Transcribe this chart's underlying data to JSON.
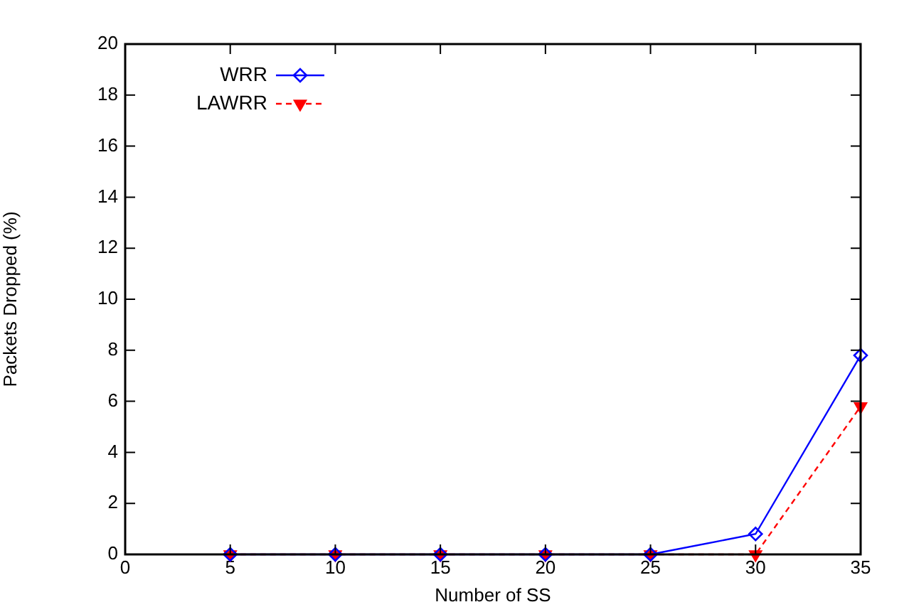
{
  "chart_data": {
    "type": "line",
    "xlabel": "Number of SS",
    "ylabel": "Packets Dropped (%)",
    "x": [
      5,
      10,
      15,
      20,
      25,
      30,
      35
    ],
    "series": [
      {
        "name": "WRR",
        "color": "#0000ff",
        "values": [
          0,
          0,
          0,
          0,
          0,
          0.8,
          7.8
        ],
        "marker": "diamond",
        "line_style": "solid"
      },
      {
        "name": "LAWRR",
        "color": "#ff0000",
        "values": [
          0,
          0,
          0,
          0,
          0,
          0,
          5.8
        ],
        "marker": "triangle",
        "line_style": "dashed"
      }
    ],
    "xlim": [
      0,
      35
    ],
    "xticks": [
      0,
      5,
      10,
      15,
      20,
      25,
      30,
      35
    ],
    "ylim": [
      0,
      20
    ],
    "yticks": [
      0,
      2,
      4,
      6,
      8,
      10,
      12,
      14,
      16,
      18,
      20
    ],
    "grid": false,
    "legend": "top left"
  }
}
